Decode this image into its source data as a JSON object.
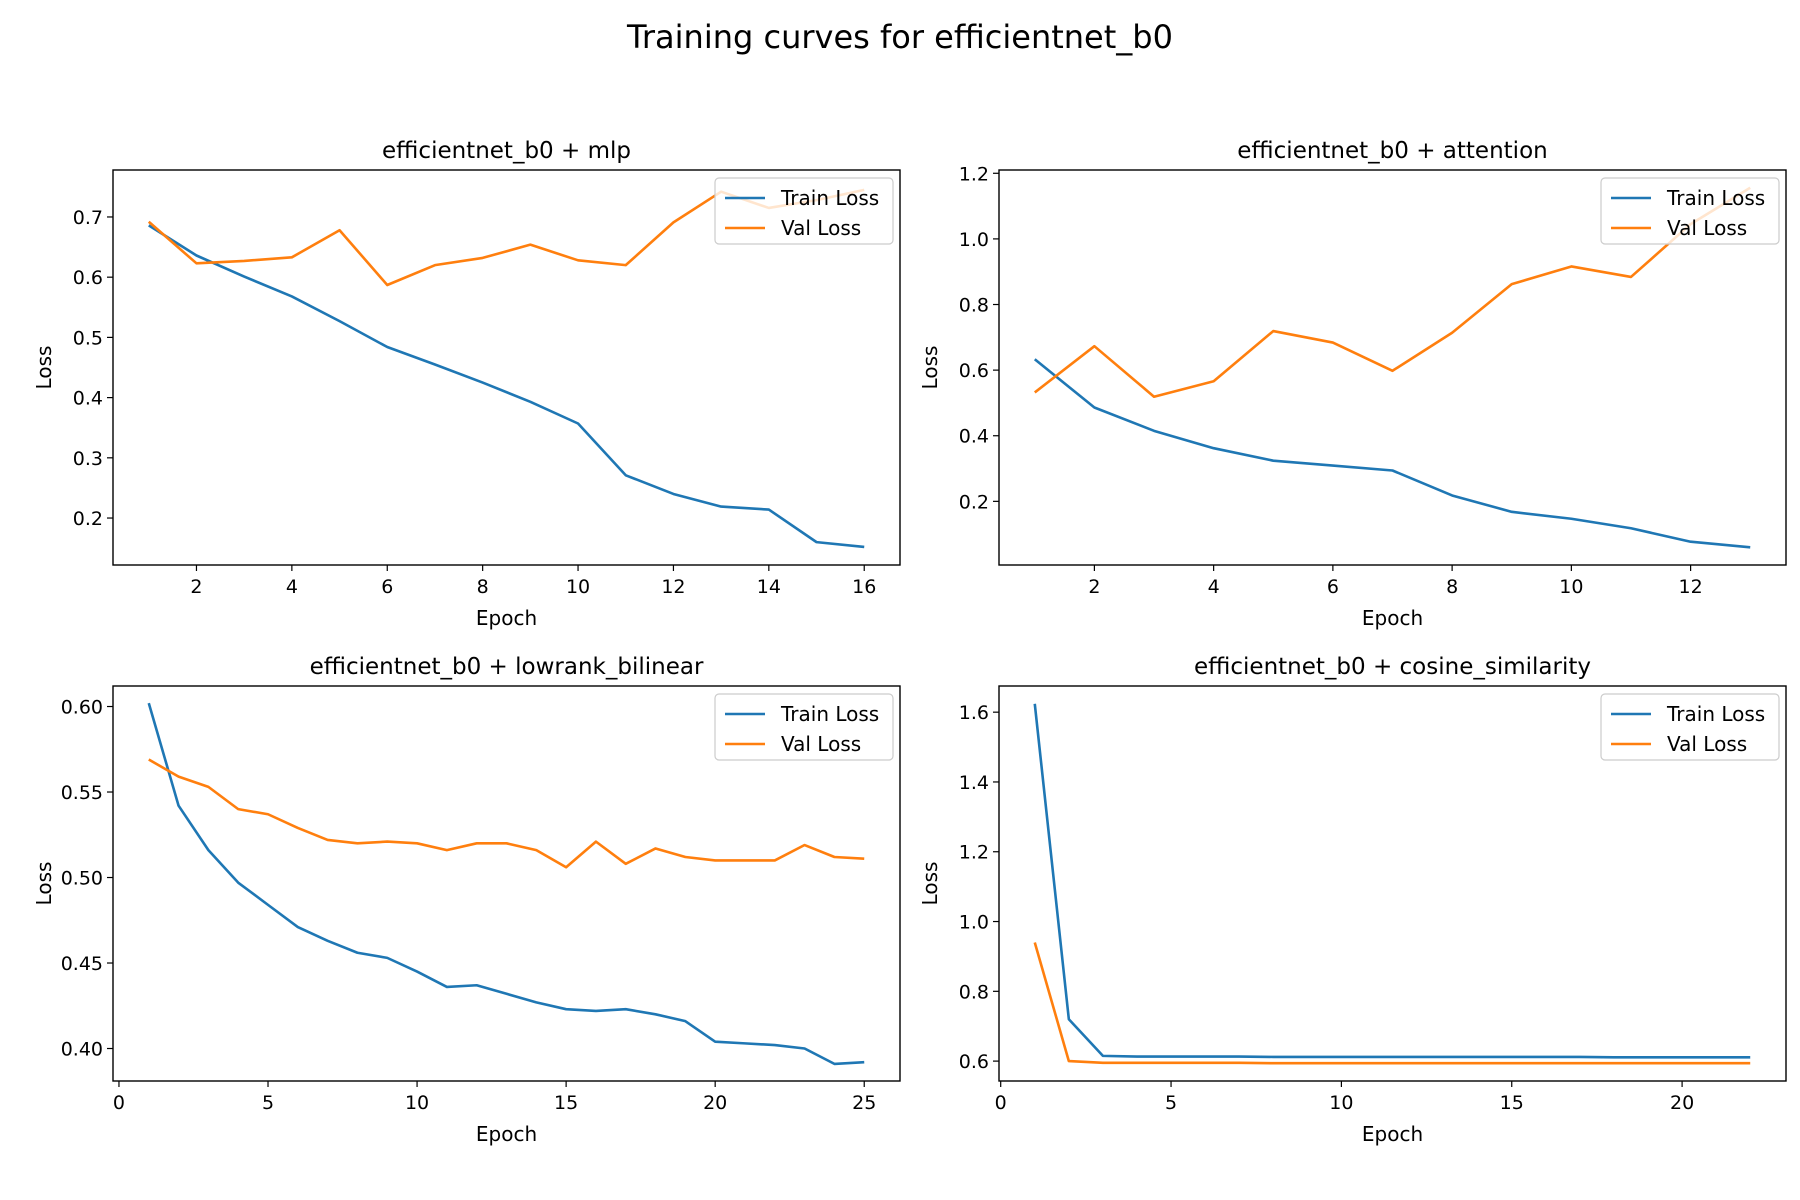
{
  "figure": {
    "title": "Training curves for efficientnet_b0"
  },
  "colors": {
    "train": "#1f77b4",
    "val": "#ff7f0e"
  },
  "chart_data": [
    {
      "type": "line",
      "title": "efficientnet_b0 + mlp",
      "xlabel": "Epoch",
      "ylabel": "Loss",
      "xlim": [
        0.25,
        16.75
      ],
      "ylim": [
        0.122,
        0.778
      ],
      "xticks": [
        2,
        4,
        6,
        8,
        10,
        12,
        14,
        16
      ],
      "yticks": [
        0.2,
        0.3,
        0.4,
        0.5,
        0.6,
        0.7
      ],
      "legend": "top-right",
      "x": [
        1,
        2,
        3,
        4,
        5,
        6,
        7,
        8,
        9,
        10,
        11,
        12,
        13,
        14,
        15,
        16
      ],
      "series": [
        {
          "name": "Train Loss",
          "values": [
            0.686,
            0.636,
            0.601,
            0.568,
            0.527,
            0.484,
            0.455,
            0.425,
            0.393,
            0.357,
            0.271,
            0.24,
            0.219,
            0.214,
            0.16,
            0.152
          ]
        },
        {
          "name": "Val Loss",
          "values": [
            0.692,
            0.623,
            0.627,
            0.633,
            0.678,
            0.587,
            0.62,
            0.632,
            0.654,
            0.628,
            0.62,
            0.691,
            0.742,
            0.715,
            0.728,
            0.745
          ]
        }
      ]
    },
    {
      "type": "line",
      "title": "efficientnet_b0 + attention",
      "xlabel": "Epoch",
      "ylabel": "Loss",
      "xlim": [
        0.4,
        13.6
      ],
      "ylim": [
        0.006,
        1.21
      ],
      "xticks": [
        2,
        4,
        6,
        8,
        10,
        12
      ],
      "yticks": [
        0.2,
        0.4,
        0.6,
        0.8,
        1.0,
        1.2
      ],
      "legend": "top-right",
      "x": [
        1,
        2,
        3,
        4,
        5,
        6,
        7,
        8,
        9,
        10,
        11,
        12,
        13
      ],
      "series": [
        {
          "name": "Train Loss",
          "values": [
            0.633,
            0.486,
            0.415,
            0.362,
            0.324,
            0.309,
            0.294,
            0.218,
            0.168,
            0.147,
            0.118,
            0.077,
            0.06
          ]
        },
        {
          "name": "Val Loss",
          "values": [
            0.532,
            0.673,
            0.519,
            0.566,
            0.719,
            0.684,
            0.598,
            0.714,
            0.862,
            0.916,
            0.884,
            1.045,
            1.156
          ]
        }
      ]
    },
    {
      "type": "line",
      "title": "efficientnet_b0 + lowrank_bilinear",
      "xlabel": "Epoch",
      "ylabel": "Loss",
      "xlim": [
        -0.2,
        26.2
      ],
      "ylim": [
        0.381,
        0.612
      ],
      "xticks": [
        0,
        5,
        10,
        15,
        20,
        25
      ],
      "yticks": [
        0.4,
        0.45,
        0.5,
        0.55,
        0.6
      ],
      "legend": "top-right",
      "x": [
        1,
        2,
        3,
        4,
        5,
        6,
        7,
        8,
        9,
        10,
        11,
        12,
        13,
        14,
        15,
        16,
        17,
        18,
        19,
        20,
        21,
        22,
        23,
        24,
        25
      ],
      "series": [
        {
          "name": "Train Loss",
          "values": [
            0.602,
            0.542,
            0.516,
            0.497,
            0.484,
            0.471,
            0.463,
            0.456,
            0.453,
            0.445,
            0.436,
            0.437,
            0.432,
            0.427,
            0.423,
            0.422,
            0.423,
            0.42,
            0.416,
            0.404,
            0.403,
            0.402,
            0.4,
            0.391,
            0.392
          ]
        },
        {
          "name": "Val Loss",
          "values": [
            0.569,
            0.559,
            0.553,
            0.54,
            0.537,
            0.529,
            0.522,
            0.52,
            0.521,
            0.52,
            0.516,
            0.52,
            0.52,
            0.516,
            0.506,
            0.521,
            0.508,
            0.517,
            0.512,
            0.51,
            0.51,
            0.51,
            0.519,
            0.512,
            0.511
          ]
        }
      ]
    },
    {
      "type": "line",
      "title": "efficientnet_b0 + cosine_similarity",
      "xlabel": "Epoch",
      "ylabel": "Loss",
      "xlim": [
        -0.05,
        23.05
      ],
      "ylim": [
        0.543,
        1.675
      ],
      "xticks": [
        0,
        5,
        10,
        15,
        20
      ],
      "yticks": [
        0.6,
        0.8,
        1.0,
        1.2,
        1.4,
        1.6
      ],
      "legend": "top-right",
      "x": [
        1,
        2,
        3,
        4,
        5,
        6,
        7,
        8,
        9,
        10,
        11,
        12,
        13,
        14,
        15,
        16,
        17,
        18,
        19,
        20,
        21,
        22
      ],
      "series": [
        {
          "name": "Train Loss",
          "values": [
            1.624,
            0.72,
            0.615,
            0.613,
            0.613,
            0.613,
            0.613,
            0.612,
            0.612,
            0.612,
            0.612,
            0.612,
            0.612,
            0.612,
            0.612,
            0.612,
            0.612,
            0.611,
            0.611,
            0.611,
            0.611,
            0.611
          ]
        },
        {
          "name": "Val Loss",
          "values": [
            0.94,
            0.6,
            0.595,
            0.595,
            0.595,
            0.595,
            0.595,
            0.594,
            0.594,
            0.594,
            0.594,
            0.594,
            0.594,
            0.594,
            0.594,
            0.594,
            0.594,
            0.594,
            0.594,
            0.594,
            0.594,
            0.594
          ]
        }
      ]
    }
  ]
}
